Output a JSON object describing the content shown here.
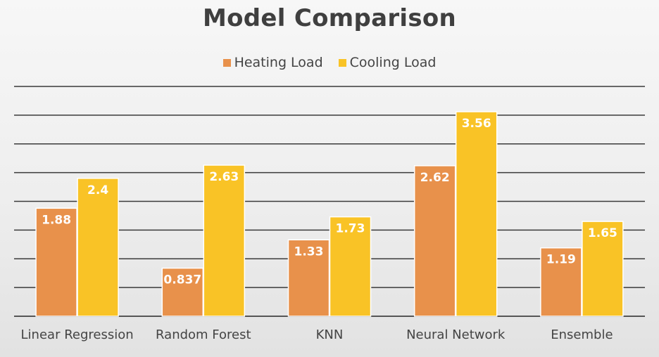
{
  "chart_data": {
    "type": "bar",
    "title": "Model Comparison",
    "categories": [
      "Linear Regression",
      "Random Forest",
      "KNN",
      "Neural Network",
      "Ensemble"
    ],
    "series": [
      {
        "name": "Heating Load",
        "color": "#E8914B",
        "values": [
          1.88,
          0.837,
          1.33,
          2.62,
          1.19
        ],
        "labels": [
          "1.88",
          "0.837",
          "1.33",
          "2.62",
          "1.19"
        ]
      },
      {
        "name": "Cooling Load",
        "color": "#F9C326",
        "values": [
          2.4,
          2.63,
          1.73,
          3.56,
          1.65
        ],
        "labels": [
          "2.4",
          "2.63",
          "1.73",
          "3.56",
          "1.65"
        ]
      }
    ],
    "ylim": [
      0,
      4
    ],
    "y_gridline_step": 0.5,
    "y_tick_labels_visible": false,
    "grid": true,
    "legend_position": "top",
    "xlabel": "",
    "ylabel": ""
  }
}
